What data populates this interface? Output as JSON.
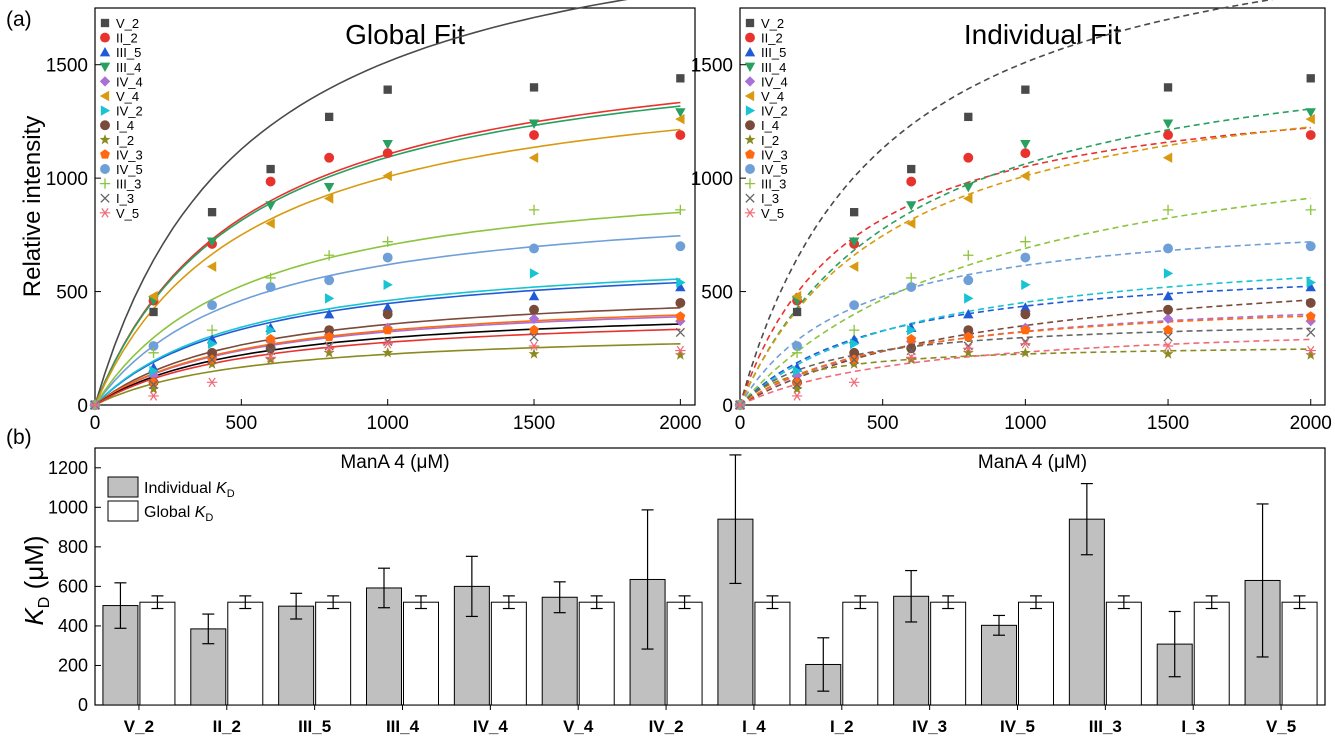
{
  "panel_labels": {
    "a": "(a)",
    "b": "(b)"
  },
  "chart_data": [
    {
      "type": "scatter",
      "panel": "(a)",
      "title": "Global Fit",
      "xlabel": "ManA 4 (μM)",
      "ylabel": "Relative intensity",
      "xlim": [
        0,
        2050
      ],
      "ylim": [
        0,
        1750
      ],
      "xticks": [
        0,
        500,
        1000,
        1500,
        2000
      ],
      "yticks": [
        0,
        500,
        1000,
        1500
      ],
      "x": [
        0,
        200,
        400,
        600,
        800,
        1000,
        1500,
        2000
      ],
      "fit_style": "solid",
      "legend_position": "top-left",
      "series": [
        {
          "name": "V_2",
          "color": "#4a4a4a",
          "marker": "square",
          "values": [
            0,
            410,
            850,
            1040,
            1270,
            1390,
            1400,
            1440
          ],
          "fit": {
            "bmax": 2300,
            "kd": 520
          }
        },
        {
          "name": "II_2",
          "color": "#e8322e",
          "marker": "circle",
          "values": [
            0,
            460,
            710,
            985,
            1090,
            1110,
            1190,
            1190
          ],
          "fit": {
            "bmax": 1680,
            "kd": 520
          }
        },
        {
          "name": "III_5",
          "color": "#1f5bd6",
          "marker": "triangle-up",
          "values": [
            0,
            165,
            290,
            340,
            400,
            430,
            480,
            520
          ],
          "fit": {
            "bmax": 680,
            "kd": 520
          }
        },
        {
          "name": "III_4",
          "color": "#27a060",
          "marker": "triangle-down",
          "values": [
            0,
            460,
            720,
            880,
            960,
            1150,
            1240,
            1290
          ],
          "fit": {
            "bmax": 1660,
            "kd": 520
          }
        },
        {
          "name": "IV_4",
          "color": "#a970d8",
          "marker": "diamond",
          "values": [
            0,
            130,
            210,
            280,
            310,
            340,
            380,
            370
          ],
          "fit": {
            "bmax": 490,
            "kd": 520
          }
        },
        {
          "name": "V_4",
          "color": "#d89a10",
          "marker": "triangle-left",
          "values": [
            0,
            480,
            610,
            800,
            910,
            1010,
            1090,
            1260
          ],
          "fit": {
            "bmax": 1530,
            "kd": 520
          }
        },
        {
          "name": "IV_2",
          "color": "#18c4d4",
          "marker": "triangle-right",
          "values": [
            0,
            150,
            270,
            330,
            470,
            530,
            580,
            540
          ],
          "fit": {
            "bmax": 700,
            "kd": 520
          }
        },
        {
          "name": "I_4",
          "color": "#7a4a3a",
          "marker": "circle",
          "values": [
            0,
            100,
            230,
            250,
            330,
            400,
            420,
            450
          ],
          "fit": {
            "bmax": 540,
            "kd": 520
          }
        },
        {
          "name": "I_2",
          "color": "#8a8a20",
          "marker": "star",
          "values": [
            0,
            70,
            180,
            200,
            230,
            230,
            225,
            220
          ],
          "fit": {
            "bmax": 340,
            "kd": 520
          }
        },
        {
          "name": "IV_3",
          "color": "#ff6a10",
          "marker": "pentagon",
          "values": [
            0,
            100,
            200,
            290,
            300,
            330,
            330,
            390
          ],
          "fit": {
            "bmax": 500,
            "kd": 520
          }
        },
        {
          "name": "IV_5",
          "color": "#6f9fd8",
          "marker": "circle",
          "values": [
            0,
            260,
            440,
            520,
            550,
            650,
            690,
            700
          ],
          "fit": {
            "bmax": 940,
            "kd": 520
          }
        },
        {
          "name": "III_3",
          "color": "#8cc43c",
          "marker": "plus",
          "values": [
            0,
            230,
            330,
            560,
            660,
            720,
            860,
            860
          ],
          "fit": {
            "bmax": 1070,
            "kd": 520
          }
        },
        {
          "name": "I_3",
          "color": "#666666",
          "marker": "x",
          "values": [
            0,
            90,
            200,
            240,
            260,
            280,
            300,
            320
          ],
          "fit": {
            "bmax": 450,
            "kd": 520
          }
        },
        {
          "name": "V_5",
          "color": "#f06a78",
          "marker": "asterisk",
          "values": [
            0,
            40,
            100,
            210,
            250,
            270,
            260,
            240
          ],
          "fit": {
            "bmax": 420,
            "kd": 520
          }
        }
      ],
      "fit_colors": {
        "V_2": "#4a4a4a",
        "II_2": "#e8322e",
        "III_5": "#1f5bd6",
        "III_4": "#27a060",
        "IV_4": "#a970d8",
        "V_4": "#d89a10",
        "IV_2": "#18c4d4",
        "I_4": "#7a4a3a",
        "I_2": "#8a8a20",
        "IV_3": "#ff6a10",
        "IV_5": "#6f9fd8",
        "III_3": "#8cc43c",
        "I_3": "#000000",
        "V_5": "#e8322e"
      }
    },
    {
      "type": "scatter",
      "panel": "(a)",
      "title": "Individual Fit",
      "xlabel": "ManA 4 (μM)",
      "ylabel": "",
      "xlim": [
        0,
        2050
      ],
      "ylim": [
        0,
        1750
      ],
      "xticks": [
        0,
        500,
        1000,
        1500,
        2000
      ],
      "yticks": [
        0,
        500,
        1000,
        1500
      ],
      "fit_style": "dashed",
      "legend_position": "top-left",
      "fits": {
        "V_2": {
          "bmax": 2270,
          "kd": 503
        },
        "II_2": {
          "bmax": 1460,
          "kd": 390
        },
        "III_5": {
          "bmax": 654,
          "kd": 500
        },
        "III_4": {
          "bmax": 1690,
          "kd": 590
        },
        "IV_4": {
          "bmax": 520,
          "kd": 600
        },
        "V_4": {
          "bmax": 1560,
          "kd": 545
        },
        "IV_2": {
          "bmax": 740,
          "kd": 635
        },
        "I_4": {
          "bmax": 680,
          "kd": 940
        },
        "I_2": {
          "bmax": 272,
          "kd": 210
        },
        "IV_3": {
          "bmax": 500,
          "kd": 550
        },
        "IV_5": {
          "bmax": 865,
          "kd": 405
        },
        "III_3": {
          "bmax": 1340,
          "kd": 940
        },
        "I_3": {
          "bmax": 390,
          "kd": 310
        },
        "V_5": {
          "bmax": 380,
          "kd": 630
        }
      }
    },
    {
      "type": "bar",
      "panel": "(b)",
      "title": "",
      "xlabel": "",
      "ylabel": {
        "main": "K",
        "sub": "D",
        "unit": " (μM)"
      },
      "ylim": [
        0,
        1300
      ],
      "yticks": [
        0,
        200,
        400,
        600,
        800,
        1000,
        1200
      ],
      "categories": [
        "V_2",
        "II_2",
        "III_5",
        "III_4",
        "IV_4",
        "V_4",
        "IV_2",
        "I_4",
        "I_2",
        "IV_3",
        "IV_5",
        "III_3",
        "I_3",
        "V_5"
      ],
      "legend_position": "top-left",
      "series": [
        {
          "name": "Individual K",
          "name_sub": "D",
          "color": "#c0c0c0",
          "values": [
            503,
            385,
            500,
            592,
            600,
            545,
            635,
            940,
            205,
            550,
            403,
            940,
            308,
            630
          ],
          "errors": [
            115,
            75,
            65,
            100,
            152,
            78,
            352,
            325,
            135,
            130,
            50,
            180,
            165,
            387
          ]
        },
        {
          "name": "Global K",
          "name_sub": "D",
          "color": "#ffffff",
          "values": [
            520,
            520,
            520,
            520,
            520,
            520,
            520,
            520,
            520,
            520,
            520,
            520,
            520,
            520
          ],
          "errors": [
            32,
            32,
            32,
            32,
            32,
            32,
            32,
            32,
            32,
            32,
            32,
            32,
            32,
            32
          ]
        }
      ]
    }
  ]
}
